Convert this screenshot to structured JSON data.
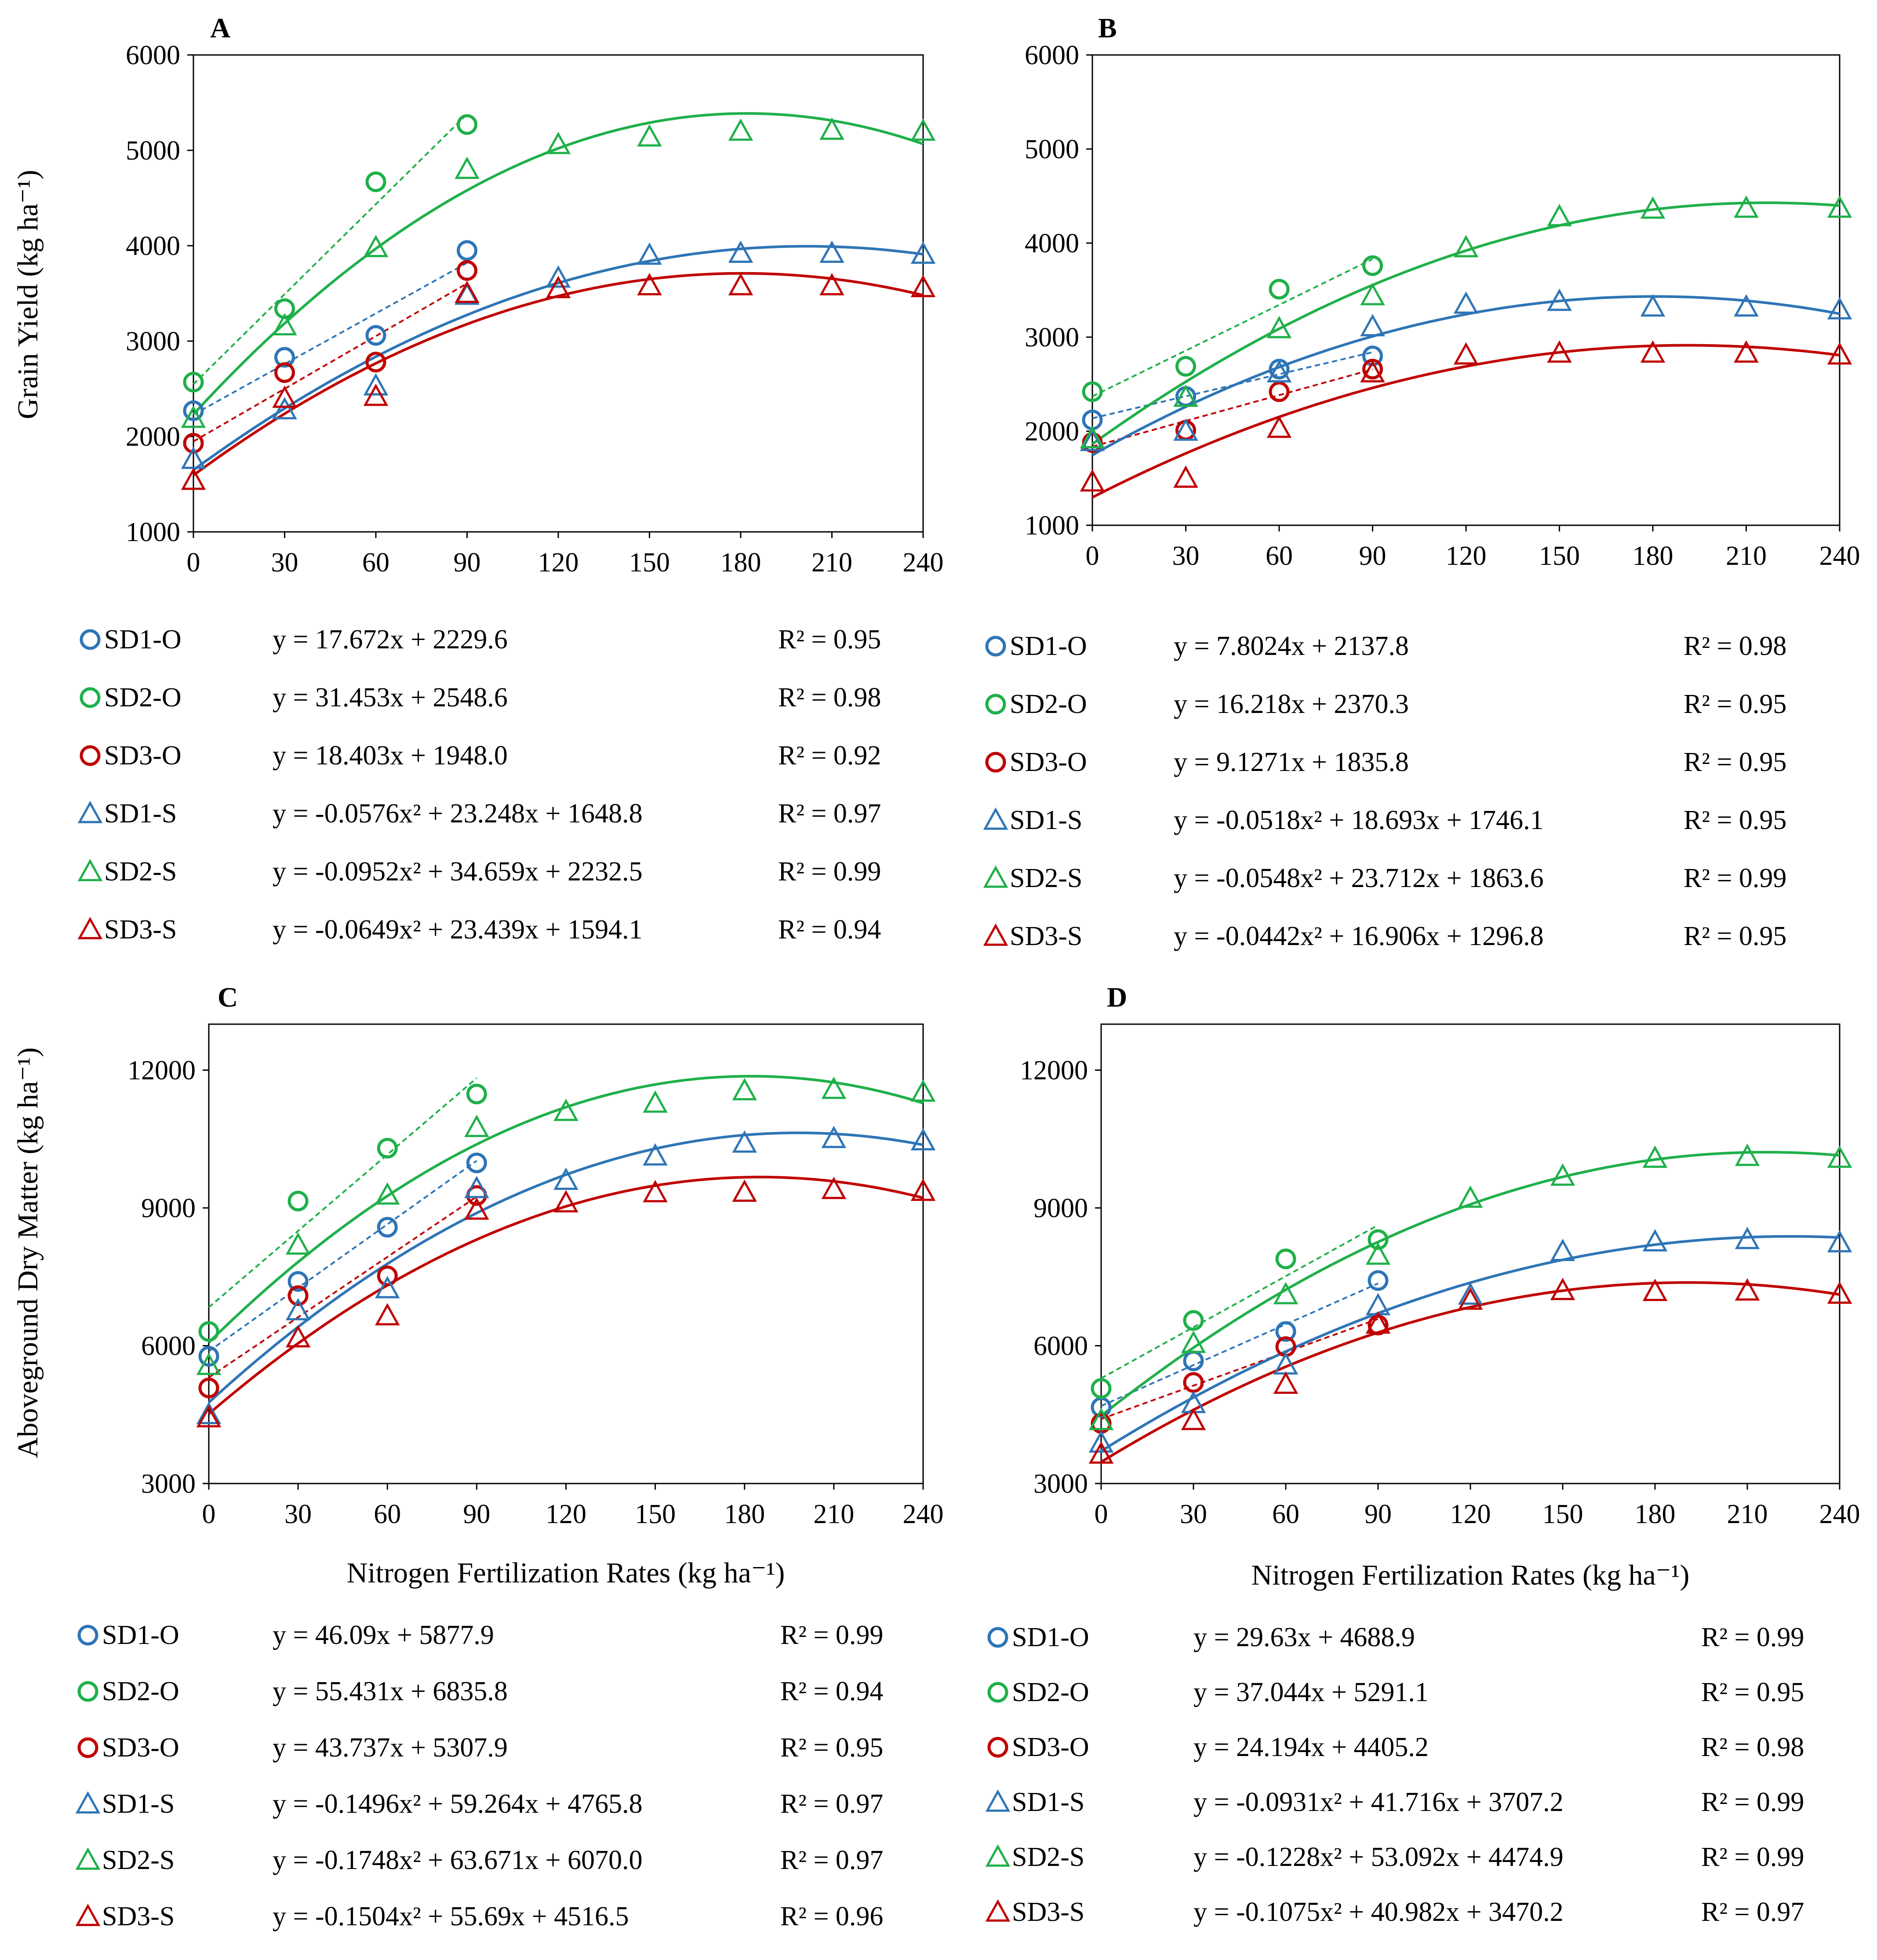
{
  "colors": {
    "SD1": "#2e75b6",
    "SD2": "#1fb04a",
    "SD3": "#c00000",
    "axis": "#000000"
  },
  "chart_data": [
    {
      "panel": "A",
      "type": "scatter",
      "ylabel": "Grain Yield (kg ha⁻¹)",
      "xlabel": "",
      "ylim": [
        1000,
        6000
      ],
      "yticks": [
        1000,
        2000,
        3000,
        4000,
        5000,
        6000
      ],
      "xlim": [
        0,
        240
      ],
      "xticks": [
        0,
        30,
        60,
        90,
        120,
        150,
        180,
        210,
        240
      ],
      "series": [
        {
          "name": "SD1-O",
          "color": "SD1",
          "marker": "circle",
          "x": [
            0,
            30,
            60,
            90
          ],
          "y": [
            2270,
            2830,
            3060,
            3950
          ],
          "fit": "linear",
          "coef": [
            0,
            17.672,
            2229.6
          ],
          "equation": "y = 17.672x + 2229.6",
          "r2": "R² = 0.95"
        },
        {
          "name": "SD2-O",
          "color": "SD2",
          "marker": "circle",
          "x": [
            0,
            30,
            60,
            90
          ],
          "y": [
            2570,
            3340,
            4670,
            5270
          ],
          "fit": "linear",
          "coef": [
            0,
            31.453,
            2548.6
          ],
          "equation": "y = 31.453x + 2548.6",
          "r2": "R² = 0.98"
        },
        {
          "name": "SD3-O",
          "color": "SD3",
          "marker": "circle",
          "x": [
            0,
            30,
            60,
            90
          ],
          "y": [
            1930,
            2670,
            2780,
            3740
          ],
          "fit": "linear",
          "coef": [
            0,
            18.403,
            1948.0
          ],
          "equation": "y = 18.403x + 1948.0",
          "r2": "R² = 0.92"
        },
        {
          "name": "SD1-S",
          "color": "SD1",
          "marker": "triangle",
          "x": [
            0,
            30,
            60,
            90,
            120,
            150,
            180,
            210,
            240
          ],
          "y": [
            1760,
            2280,
            2530,
            3480,
            3660,
            3900,
            3920,
            3920,
            3910
          ],
          "fit": "quad",
          "coef": [
            -0.0576,
            23.248,
            1648.8
          ],
          "equation": "y = -0.0576x² + 23.248x + 1648.8",
          "r2": "R² = 0.97"
        },
        {
          "name": "SD2-S",
          "color": "SD2",
          "marker": "triangle",
          "x": [
            0,
            30,
            60,
            90,
            120,
            150,
            180,
            210,
            240
          ],
          "y": [
            2190,
            3160,
            3980,
            4800,
            5060,
            5140,
            5200,
            5210,
            5200
          ],
          "fit": "quad",
          "coef": [
            -0.0952,
            34.659,
            2232.5
          ],
          "equation": "y = -0.0952x² + 34.659x + 2232.5",
          "r2": "R² = 0.99"
        },
        {
          "name": "SD3-S",
          "color": "SD3",
          "marker": "triangle",
          "x": [
            0,
            30,
            60,
            90,
            120,
            150,
            180,
            210,
            240
          ],
          "y": [
            1540,
            2400,
            2420,
            3500,
            3550,
            3580,
            3580,
            3580,
            3560
          ],
          "fit": "quad",
          "coef": [
            -0.0649,
            23.439,
            1594.1
          ],
          "equation": "y = -0.0649x² + 23.439x + 1594.1",
          "r2": "R² = 0.94"
        }
      ]
    },
    {
      "panel": "B",
      "type": "scatter",
      "ylabel": "",
      "xlabel": "",
      "ylim": [
        1000,
        6000
      ],
      "yticks": [
        1000,
        2000,
        3000,
        4000,
        5000,
        6000
      ],
      "xlim": [
        0,
        240
      ],
      "xticks": [
        0,
        30,
        60,
        90,
        120,
        150,
        180,
        210,
        240
      ],
      "series": [
        {
          "name": "SD1-O",
          "color": "SD1",
          "marker": "circle",
          "x": [
            0,
            30,
            60,
            90
          ],
          "y": [
            2120,
            2370,
            2660,
            2800
          ],
          "fit": "linear",
          "coef": [
            0,
            7.8024,
            2137.8
          ],
          "equation": "y = 7.8024x + 2137.8",
          "r2": "R² = 0.98"
        },
        {
          "name": "SD2-O",
          "color": "SD2",
          "marker": "circle",
          "x": [
            0,
            30,
            60,
            90
          ],
          "y": [
            2420,
            2690,
            3510,
            3760
          ],
          "fit": "linear",
          "coef": [
            0,
            16.218,
            2370.3
          ],
          "equation": "y = 16.218x + 2370.3",
          "r2": "R² = 0.95"
        },
        {
          "name": "SD3-O",
          "color": "SD3",
          "marker": "circle",
          "x": [
            0,
            30,
            60,
            90
          ],
          "y": [
            1880,
            2010,
            2420,
            2660
          ],
          "fit": "linear",
          "coef": [
            0,
            9.1271,
            1835.8
          ],
          "equation": "y = 9.1271x + 1835.8",
          "r2": "R² = 0.95"
        },
        {
          "name": "SD1-S",
          "color": "SD1",
          "marker": "triangle",
          "x": [
            0,
            30,
            60,
            90,
            120,
            150,
            180,
            210,
            240
          ],
          "y": [
            1890,
            2000,
            2620,
            3110,
            3350,
            3380,
            3320,
            3320,
            3290
          ],
          "fit": "quad",
          "coef": [
            -0.0518,
            18.693,
            1746.1
          ],
          "equation": "y = -0.0518x² + 18.693x + 1746.1",
          "r2": "R² = 0.95"
        },
        {
          "name": "SD2-S",
          "color": "SD2",
          "marker": "triangle",
          "x": [
            0,
            30,
            60,
            90,
            120,
            150,
            180,
            210,
            240
          ],
          "y": [
            1920,
            2360,
            3090,
            3440,
            3950,
            4280,
            4360,
            4370,
            4370
          ],
          "fit": "quad",
          "coef": [
            -0.0548,
            23.712,
            1863.6
          ],
          "equation": "y = -0.0548x² + 23.712x + 1863.6",
          "r2": "R² = 0.99"
        },
        {
          "name": "SD3-S",
          "color": "SD3",
          "marker": "triangle",
          "x": [
            0,
            30,
            60,
            90,
            120,
            150,
            180,
            210,
            240
          ],
          "y": [
            1460,
            1500,
            2030,
            2620,
            2810,
            2830,
            2830,
            2830,
            2810
          ],
          "fit": "quad",
          "coef": [
            -0.0442,
            16.906,
            1296.8
          ],
          "equation": "y = -0.0442x² + 16.906x + 1296.8",
          "r2": "R² = 0.95"
        }
      ]
    },
    {
      "panel": "C",
      "type": "scatter",
      "ylabel": "Aboveground Dry Matter (kg ha⁻¹)",
      "xlabel": "Nitrogen Fertilization Rates (kg ha⁻¹)",
      "ylim": [
        3000,
        13000
      ],
      "yticks": [
        3000,
        6000,
        9000,
        12000
      ],
      "xlim": [
        0,
        240
      ],
      "xticks": [
        0,
        30,
        60,
        90,
        120,
        150,
        180,
        210,
        240
      ],
      "series": [
        {
          "name": "SD1-O",
          "color": "SD1",
          "marker": "circle",
          "x": [
            0,
            30,
            60,
            90
          ],
          "y": [
            5770,
            7400,
            8580,
            9980
          ],
          "fit": "linear",
          "coef": [
            0,
            46.09,
            5877.9
          ],
          "equation": "y = 46.09x + 5877.9",
          "r2": "R² = 0.99"
        },
        {
          "name": "SD2-O",
          "color": "SD2",
          "marker": "circle",
          "x": [
            0,
            30,
            60,
            90
          ],
          "y": [
            6310,
            9150,
            10300,
            11480
          ],
          "fit": "linear",
          "coef": [
            0,
            55.431,
            6835.8
          ],
          "equation": "y = 55.431x + 6835.8",
          "r2": "R² = 0.94"
        },
        {
          "name": "SD3-O",
          "color": "SD3",
          "marker": "circle",
          "x": [
            0,
            30,
            60,
            90
          ],
          "y": [
            5080,
            7090,
            7520,
            9270
          ],
          "fit": "linear",
          "coef": [
            0,
            43.737,
            5307.9
          ],
          "equation": "y = 43.737x + 5307.9",
          "r2": "R² = 0.95"
        },
        {
          "name": "SD1-S",
          "color": "SD1",
          "marker": "triangle",
          "x": [
            0,
            30,
            60,
            90,
            120,
            150,
            180,
            210,
            240
          ],
          "y": [
            4500,
            6760,
            7240,
            9420,
            9600,
            10130,
            10410,
            10510,
            10460
          ],
          "fit": "quad",
          "coef": [
            -0.1496,
            59.264,
            4765.8
          ],
          "equation": "y = -0.1496x² + 59.264x + 4765.8",
          "r2": "R² = 0.97"
        },
        {
          "name": "SD2-S",
          "color": "SD2",
          "marker": "triangle",
          "x": [
            0,
            30,
            60,
            90,
            120,
            150,
            180,
            210,
            240
          ],
          "y": [
            5570,
            8190,
            9280,
            10750,
            11100,
            11280,
            11550,
            11580,
            11520
          ],
          "fit": "quad",
          "coef": [
            -0.1748,
            63.671,
            6070.0
          ],
          "equation": "y = -0.1748x² + 63.671x + 6070.0",
          "r2": "R² = 0.97"
        },
        {
          "name": "SD3-S",
          "color": "SD3",
          "marker": "triangle",
          "x": [
            0,
            30,
            60,
            90,
            120,
            150,
            180,
            210,
            240
          ],
          "y": [
            4430,
            6170,
            6650,
            8950,
            9110,
            9330,
            9340,
            9400,
            9360
          ],
          "fit": "quad",
          "coef": [
            -0.1504,
            55.69,
            4516.5
          ],
          "equation": "y = -0.1504x² + 55.69x + 4516.5",
          "r2": "R² = 0.96"
        }
      ]
    },
    {
      "panel": "D",
      "type": "scatter",
      "ylabel": "",
      "xlabel": "Nitrogen Fertilization Rates (kg ha⁻¹)",
      "ylim": [
        3000,
        13000
      ],
      "yticks": [
        3000,
        6000,
        9000,
        12000
      ],
      "xlim": [
        0,
        240
      ],
      "xticks": [
        0,
        30,
        60,
        90,
        120,
        150,
        180,
        210,
        240
      ],
      "series": [
        {
          "name": "SD1-O",
          "color": "SD1",
          "marker": "circle",
          "x": [
            0,
            30,
            60,
            90
          ],
          "y": [
            4660,
            5670,
            6310,
            7420
          ],
          "fit": "linear",
          "coef": [
            0,
            29.63,
            4688.9
          ],
          "equation": "y = 29.63x + 4688.9",
          "r2": "R² = 0.99"
        },
        {
          "name": "SD2-O",
          "color": "SD2",
          "marker": "circle",
          "x": [
            0,
            30,
            60,
            90
          ],
          "y": [
            5070,
            6550,
            7890,
            8310
          ],
          "fit": "linear",
          "coef": [
            0,
            37.044,
            5291.1
          ],
          "equation": "y = 37.044x + 5291.1",
          "r2": "R² = 0.95"
        },
        {
          "name": "SD3-O",
          "color": "SD3",
          "marker": "circle",
          "x": [
            0,
            30,
            60,
            90
          ],
          "y": [
            4310,
            5200,
            5980,
            6450
          ],
          "fit": "linear",
          "coef": [
            0,
            24.194,
            4405.2
          ],
          "equation": "y = 24.194x + 4405.2",
          "r2": "R² = 0.98"
        },
        {
          "name": "SD1-S",
          "color": "SD1",
          "marker": "triangle",
          "x": [
            0,
            30,
            60,
            90,
            120,
            150,
            180,
            210,
            240
          ],
          "y": [
            3880,
            4740,
            5580,
            6870,
            7100,
            8050,
            8260,
            8310,
            8240
          ],
          "fit": "quad",
          "coef": [
            -0.0931,
            41.716,
            3707.2
          ],
          "equation": "y = -0.0931x² + 41.716x + 3707.2",
          "r2": "R² = 0.99"
        },
        {
          "name": "SD2-S",
          "color": "SD2",
          "marker": "triangle",
          "x": [
            0,
            30,
            60,
            90,
            120,
            150,
            180,
            210,
            240
          ],
          "y": [
            4370,
            6050,
            7110,
            7970,
            9210,
            9690,
            10080,
            10120,
            10080
          ],
          "fit": "quad",
          "coef": [
            -0.1228,
            53.092,
            4474.9
          ],
          "equation": "y = -0.1228x² + 53.092x + 4474.9",
          "r2": "R² = 0.99"
        },
        {
          "name": "SD3-S",
          "color": "SD3",
          "marker": "triangle",
          "x": [
            0,
            30,
            60,
            90,
            120,
            150,
            180,
            210,
            240
          ],
          "y": [
            3640,
            4370,
            5160,
            6470,
            6990,
            7200,
            7180,
            7190,
            7120
          ],
          "fit": "quad",
          "coef": [
            -0.1075,
            40.982,
            3470.2
          ],
          "equation": "y = -0.1075x² + 40.982x + 3470.2",
          "r2": "R² = 0.97"
        }
      ]
    }
  ]
}
